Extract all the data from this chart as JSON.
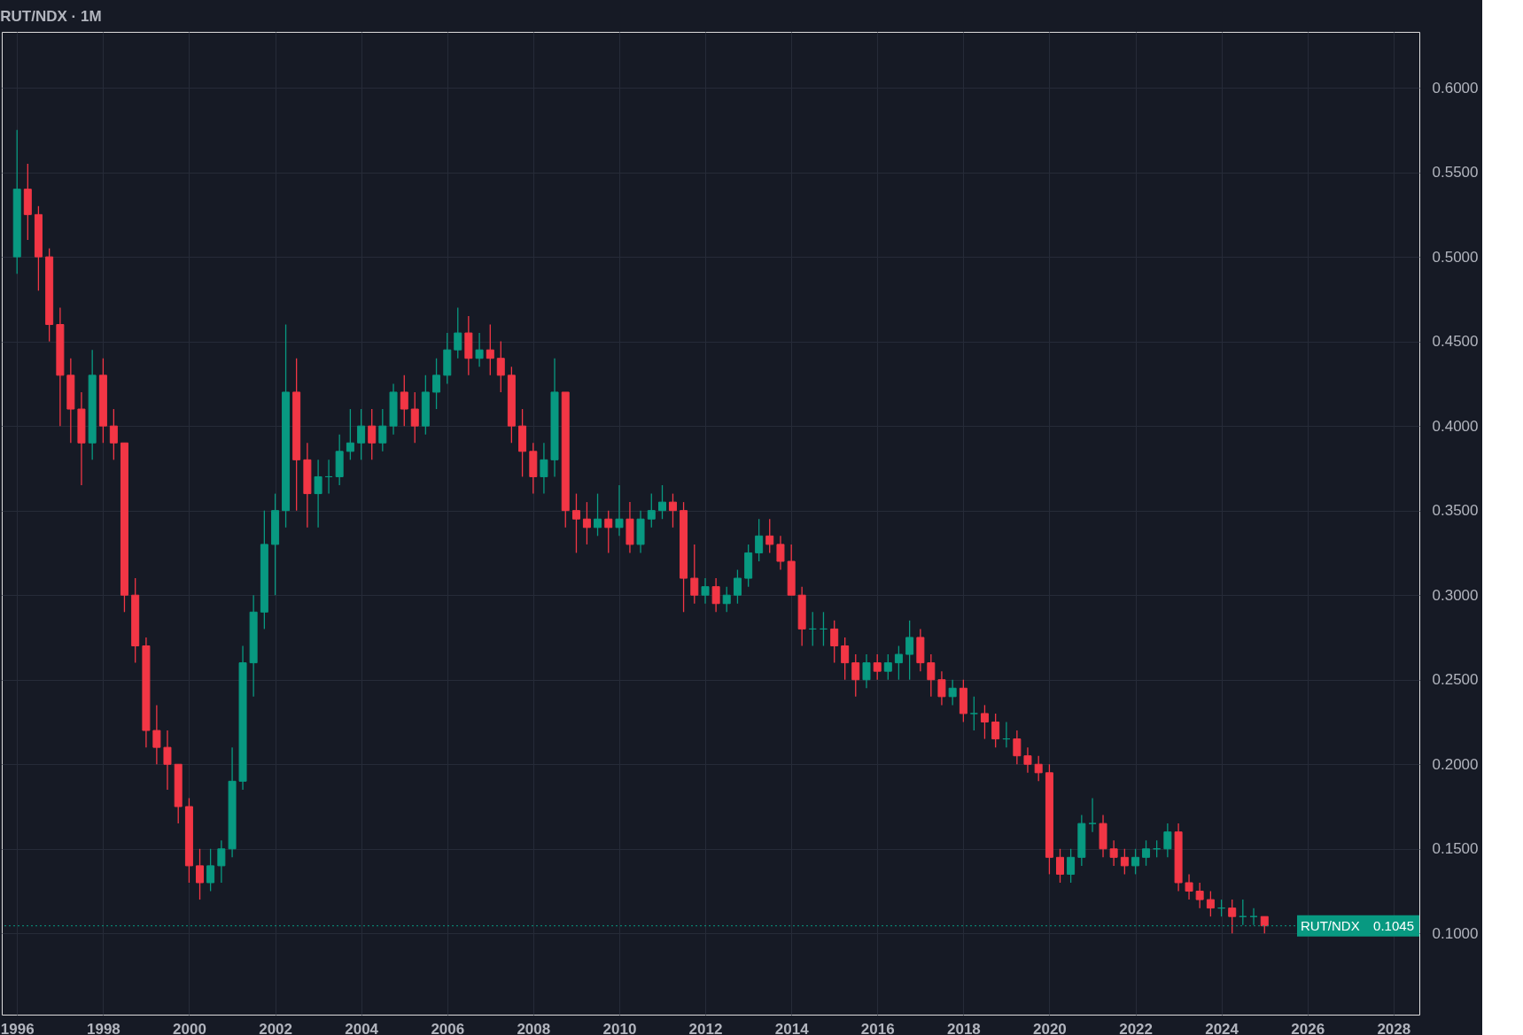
{
  "chart_data": {
    "type": "candlestick",
    "title": "RUT/NDX · 1M",
    "x": [
      "1996-01",
      "1996-04",
      "1996-07",
      "1996-10",
      "1997-01",
      "1997-04",
      "1997-07",
      "1997-10",
      "1998-01",
      "1998-04",
      "1998-07",
      "1998-10",
      "1999-01",
      "1999-04",
      "1999-07",
      "1999-10",
      "2000-01",
      "2000-04",
      "2000-07",
      "2000-10",
      "2001-01",
      "2001-04",
      "2001-07",
      "2001-10",
      "2002-01",
      "2002-04",
      "2002-07",
      "2002-10",
      "2003-01",
      "2003-04",
      "2003-07",
      "2003-10",
      "2004-01",
      "2004-04",
      "2004-07",
      "2004-10",
      "2005-01",
      "2005-04",
      "2005-07",
      "2005-10",
      "2006-01",
      "2006-04",
      "2006-07",
      "2006-10",
      "2007-01",
      "2007-04",
      "2007-07",
      "2007-10",
      "2008-01",
      "2008-04",
      "2008-07",
      "2008-10",
      "2009-01",
      "2009-04",
      "2009-07",
      "2009-10",
      "2010-01",
      "2010-04",
      "2010-07",
      "2010-10",
      "2011-01",
      "2011-04",
      "2011-07",
      "2011-10",
      "2012-01",
      "2012-04",
      "2012-07",
      "2012-10",
      "2013-01",
      "2013-04",
      "2013-07",
      "2013-10",
      "2014-01",
      "2014-04",
      "2014-07",
      "2014-10",
      "2015-01",
      "2015-04",
      "2015-07",
      "2015-10",
      "2016-01",
      "2016-04",
      "2016-07",
      "2016-10",
      "2017-01",
      "2017-04",
      "2017-07",
      "2017-10",
      "2018-01",
      "2018-04",
      "2018-07",
      "2018-10",
      "2019-01",
      "2019-04",
      "2019-07",
      "2019-10",
      "2020-01",
      "2020-04",
      "2020-07",
      "2020-10",
      "2021-01",
      "2021-04",
      "2021-07",
      "2021-10",
      "2022-01",
      "2022-04",
      "2022-07",
      "2022-10",
      "2023-01",
      "2023-04",
      "2023-07",
      "2023-10",
      "2024-01",
      "2024-04",
      "2024-07",
      "2024-10",
      "2025-01"
    ],
    "ohlc": [
      [
        0.5,
        0.575,
        0.49,
        0.54
      ],
      [
        0.54,
        0.555,
        0.51,
        0.525
      ],
      [
        0.525,
        0.53,
        0.48,
        0.5
      ],
      [
        0.5,
        0.505,
        0.45,
        0.46
      ],
      [
        0.46,
        0.47,
        0.4,
        0.43
      ],
      [
        0.43,
        0.44,
        0.39,
        0.41
      ],
      [
        0.41,
        0.42,
        0.365,
        0.39
      ],
      [
        0.39,
        0.445,
        0.38,
        0.43
      ],
      [
        0.43,
        0.44,
        0.39,
        0.4
      ],
      [
        0.4,
        0.41,
        0.38,
        0.39
      ],
      [
        0.39,
        0.39,
        0.29,
        0.3
      ],
      [
        0.3,
        0.31,
        0.26,
        0.27
      ],
      [
        0.27,
        0.275,
        0.21,
        0.22
      ],
      [
        0.22,
        0.235,
        0.2,
        0.21
      ],
      [
        0.21,
        0.22,
        0.185,
        0.2
      ],
      [
        0.2,
        0.2,
        0.165,
        0.175
      ],
      [
        0.175,
        0.18,
        0.13,
        0.14
      ],
      [
        0.14,
        0.15,
        0.12,
        0.13
      ],
      [
        0.13,
        0.15,
        0.125,
        0.14
      ],
      [
        0.14,
        0.155,
        0.13,
        0.15
      ],
      [
        0.15,
        0.21,
        0.145,
        0.19
      ],
      [
        0.19,
        0.27,
        0.185,
        0.26
      ],
      [
        0.26,
        0.3,
        0.24,
        0.29
      ],
      [
        0.29,
        0.35,
        0.28,
        0.33
      ],
      [
        0.33,
        0.36,
        0.3,
        0.35
      ],
      [
        0.35,
        0.46,
        0.34,
        0.42
      ],
      [
        0.42,
        0.44,
        0.35,
        0.38
      ],
      [
        0.38,
        0.39,
        0.34,
        0.36
      ],
      [
        0.36,
        0.38,
        0.34,
        0.37
      ],
      [
        0.37,
        0.38,
        0.36,
        0.37
      ],
      [
        0.37,
        0.395,
        0.365,
        0.385
      ],
      [
        0.385,
        0.41,
        0.38,
        0.39
      ],
      [
        0.39,
        0.41,
        0.38,
        0.4
      ],
      [
        0.4,
        0.41,
        0.38,
        0.39
      ],
      [
        0.39,
        0.41,
        0.385,
        0.4
      ],
      [
        0.4,
        0.425,
        0.395,
        0.42
      ],
      [
        0.42,
        0.43,
        0.4,
        0.41
      ],
      [
        0.41,
        0.42,
        0.39,
        0.4
      ],
      [
        0.4,
        0.43,
        0.395,
        0.42
      ],
      [
        0.42,
        0.44,
        0.41,
        0.43
      ],
      [
        0.43,
        0.455,
        0.425,
        0.445
      ],
      [
        0.445,
        0.47,
        0.44,
        0.455
      ],
      [
        0.455,
        0.465,
        0.43,
        0.44
      ],
      [
        0.44,
        0.455,
        0.435,
        0.445
      ],
      [
        0.445,
        0.46,
        0.43,
        0.44
      ],
      [
        0.44,
        0.45,
        0.42,
        0.43
      ],
      [
        0.43,
        0.435,
        0.39,
        0.4
      ],
      [
        0.4,
        0.41,
        0.37,
        0.385
      ],
      [
        0.385,
        0.39,
        0.36,
        0.37
      ],
      [
        0.37,
        0.39,
        0.36,
        0.38
      ],
      [
        0.38,
        0.44,
        0.37,
        0.42
      ],
      [
        0.42,
        0.42,
        0.34,
        0.35
      ],
      [
        0.35,
        0.36,
        0.325,
        0.345
      ],
      [
        0.345,
        0.355,
        0.33,
        0.34
      ],
      [
        0.34,
        0.36,
        0.335,
        0.345
      ],
      [
        0.345,
        0.35,
        0.325,
        0.34
      ],
      [
        0.34,
        0.365,
        0.335,
        0.345
      ],
      [
        0.345,
        0.355,
        0.325,
        0.33
      ],
      [
        0.33,
        0.35,
        0.325,
        0.345
      ],
      [
        0.345,
        0.36,
        0.34,
        0.35
      ],
      [
        0.35,
        0.365,
        0.345,
        0.355
      ],
      [
        0.355,
        0.36,
        0.34,
        0.35
      ],
      [
        0.35,
        0.355,
        0.29,
        0.31
      ],
      [
        0.31,
        0.33,
        0.295,
        0.3
      ],
      [
        0.3,
        0.31,
        0.295,
        0.305
      ],
      [
        0.305,
        0.31,
        0.29,
        0.295
      ],
      [
        0.295,
        0.305,
        0.29,
        0.3
      ],
      [
        0.3,
        0.315,
        0.295,
        0.31
      ],
      [
        0.31,
        0.33,
        0.305,
        0.325
      ],
      [
        0.325,
        0.345,
        0.32,
        0.335
      ],
      [
        0.335,
        0.345,
        0.325,
        0.33
      ],
      [
        0.33,
        0.335,
        0.315,
        0.32
      ],
      [
        0.32,
        0.33,
        0.3,
        0.3
      ],
      [
        0.3,
        0.305,
        0.27,
        0.28
      ],
      [
        0.28,
        0.29,
        0.27,
        0.28
      ],
      [
        0.28,
        0.29,
        0.27,
        0.28
      ],
      [
        0.28,
        0.285,
        0.26,
        0.27
      ],
      [
        0.27,
        0.275,
        0.25,
        0.26
      ],
      [
        0.26,
        0.265,
        0.24,
        0.25
      ],
      [
        0.25,
        0.265,
        0.245,
        0.26
      ],
      [
        0.26,
        0.265,
        0.25,
        0.255
      ],
      [
        0.255,
        0.265,
        0.25,
        0.26
      ],
      [
        0.26,
        0.27,
        0.25,
        0.265
      ],
      [
        0.265,
        0.285,
        0.25,
        0.275
      ],
      [
        0.275,
        0.28,
        0.255,
        0.26
      ],
      [
        0.26,
        0.265,
        0.24,
        0.25
      ],
      [
        0.25,
        0.255,
        0.235,
        0.24
      ],
      [
        0.24,
        0.25,
        0.235,
        0.245
      ],
      [
        0.245,
        0.25,
        0.225,
        0.23
      ],
      [
        0.23,
        0.24,
        0.22,
        0.23
      ],
      [
        0.23,
        0.235,
        0.215,
        0.225
      ],
      [
        0.225,
        0.23,
        0.21,
        0.215
      ],
      [
        0.215,
        0.225,
        0.21,
        0.215
      ],
      [
        0.215,
        0.22,
        0.2,
        0.205
      ],
      [
        0.205,
        0.21,
        0.195,
        0.2
      ],
      [
        0.2,
        0.205,
        0.19,
        0.195
      ],
      [
        0.195,
        0.2,
        0.135,
        0.145
      ],
      [
        0.145,
        0.15,
        0.13,
        0.135
      ],
      [
        0.135,
        0.15,
        0.13,
        0.145
      ],
      [
        0.145,
        0.17,
        0.14,
        0.165
      ],
      [
        0.165,
        0.18,
        0.16,
        0.165
      ],
      [
        0.165,
        0.17,
        0.145,
        0.15
      ],
      [
        0.15,
        0.155,
        0.14,
        0.145
      ],
      [
        0.145,
        0.15,
        0.135,
        0.14
      ],
      [
        0.14,
        0.15,
        0.135,
        0.145
      ],
      [
        0.145,
        0.155,
        0.14,
        0.15
      ],
      [
        0.15,
        0.155,
        0.145,
        0.15
      ],
      [
        0.15,
        0.165,
        0.145,
        0.16
      ],
      [
        0.16,
        0.165,
        0.125,
        0.13
      ],
      [
        0.13,
        0.135,
        0.12,
        0.125
      ],
      [
        0.125,
        0.13,
        0.115,
        0.12
      ],
      [
        0.12,
        0.125,
        0.11,
        0.115
      ],
      [
        0.115,
        0.12,
        0.11,
        0.115
      ],
      [
        0.115,
        0.12,
        0.1,
        0.11
      ],
      [
        0.11,
        0.12,
        0.105,
        0.11
      ],
      [
        0.11,
        0.115,
        0.105,
        0.11
      ],
      [
        0.11,
        0.11,
        0.1,
        0.1045
      ]
    ],
    "colors": [
      "#089981",
      "#f23645",
      "#f23645",
      "#f23645",
      "#f23645",
      "#f23645",
      "#f23645",
      "#089981",
      "#f23645",
      "#f23645",
      "#f23645",
      "#f23645",
      "#f23645",
      "#f23645",
      "#f23645",
      "#f23645",
      "#f23645",
      "#f23645",
      "#089981",
      "#089981",
      "#089981",
      "#089981",
      "#089981",
      "#089981",
      "#089981",
      "#089981",
      "#f23645",
      "#f23645",
      "#089981",
      "#089981",
      "#089981",
      "#089981",
      "#089981",
      "#f23645",
      "#089981",
      "#089981",
      "#f23645",
      "#f23645",
      "#089981",
      "#089981",
      "#089981",
      "#089981",
      "#f23645",
      "#089981",
      "#f23645",
      "#f23645",
      "#f23645",
      "#f23645",
      "#f23645",
      "#089981",
      "#089981",
      "#f23645",
      "#f23645",
      "#f23645",
      "#089981",
      "#f23645",
      "#089981",
      "#f23645",
      "#089981",
      "#089981",
      "#089981",
      "#f23645",
      "#f23645",
      "#f23645",
      "#089981",
      "#f23645",
      "#089981",
      "#089981",
      "#089981",
      "#089981",
      "#f23645",
      "#f23645",
      "#f23645",
      "#f23645",
      "#089981",
      "#089981",
      "#f23645",
      "#f23645",
      "#f23645",
      "#089981",
      "#f23645",
      "#089981",
      "#089981",
      "#089981",
      "#f23645",
      "#f23645",
      "#f23645",
      "#089981",
      "#f23645",
      "#089981",
      "#f23645",
      "#f23645",
      "#089981",
      "#f23645",
      "#f23645",
      "#f23645",
      "#f23645",
      "#f23645",
      "#089981",
      "#089981",
      "#089981",
      "#f23645",
      "#f23645",
      "#f23645",
      "#089981",
      "#089981",
      "#089981",
      "#089981",
      "#f23645",
      "#f23645",
      "#f23645",
      "#f23645",
      "#089981",
      "#f23645",
      "#089981",
      "#089981",
      "#f23645"
    ],
    "annotations": [
      {
        "text": "0.1045",
        "y": 0.1045
      }
    ],
    "xlim": [
      "1995-10",
      "2028-07"
    ],
    "xticks": [
      "1996",
      "1998",
      "2000",
      "2002",
      "2004",
      "2006",
      "2008",
      "2010",
      "2012",
      "2014",
      "2016",
      "2018",
      "2020",
      "2022",
      "2024",
      "2026",
      "2028"
    ],
    "ylim": [
      0.052,
      0.633
    ],
    "yticks": [
      {
        "value": 0.1,
        "label": "0.1000"
      },
      {
        "value": 0.15,
        "label": "0.1500"
      },
      {
        "value": 0.2,
        "label": "0.2000"
      },
      {
        "value": 0.25,
        "label": "0.2500"
      },
      {
        "value": 0.3,
        "label": "0.3000"
      },
      {
        "value": 0.35,
        "label": "0.3500"
      },
      {
        "value": 0.4,
        "label": "0.4000"
      },
      {
        "value": 0.45,
        "label": "0.4500"
      },
      {
        "value": 0.5,
        "label": "0.5000"
      },
      {
        "value": 0.55,
        "label": "0.5500"
      },
      {
        "value": 0.6,
        "label": "0.6000"
      }
    ],
    "ref_lines": [
      {
        "axis": "y",
        "value": 0.1045,
        "label": "RUT/NDX",
        "color": "#089981",
        "line_style": "dotted"
      }
    ],
    "grid": true
  }
}
